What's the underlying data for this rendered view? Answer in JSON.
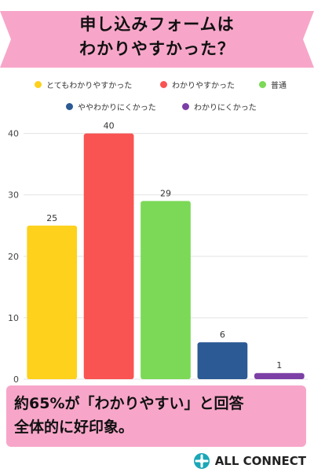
{
  "banner": {
    "line1": "申し込みフォームは",
    "line2": "わかりやすかった？",
    "color": "#f7a6c9"
  },
  "callout": {
    "line1": "約65%が「わかりやすい」と回答",
    "line2": "全体的に好印象。",
    "color": "#f7a6c9"
  },
  "logo": {
    "text": "ALL CONNECT",
    "icon": "connect-logo-icon"
  },
  "chart_data": {
    "type": "bar",
    "categories": [
      "とてもわかりやすかった",
      "わかりやすかった",
      "普通",
      "ややわかりにくかった",
      "わかりにくかった"
    ],
    "values": [
      25,
      40,
      29,
      6,
      1
    ],
    "colors": [
      "#fdd11c",
      "#f95352",
      "#7cd957",
      "#2b5a94",
      "#7b3fa6"
    ],
    "ylim": [
      0,
      40
    ],
    "yticks": [
      0,
      10,
      20,
      30,
      40
    ],
    "grid": true,
    "legend_position": "top",
    "data_labels": true
  }
}
